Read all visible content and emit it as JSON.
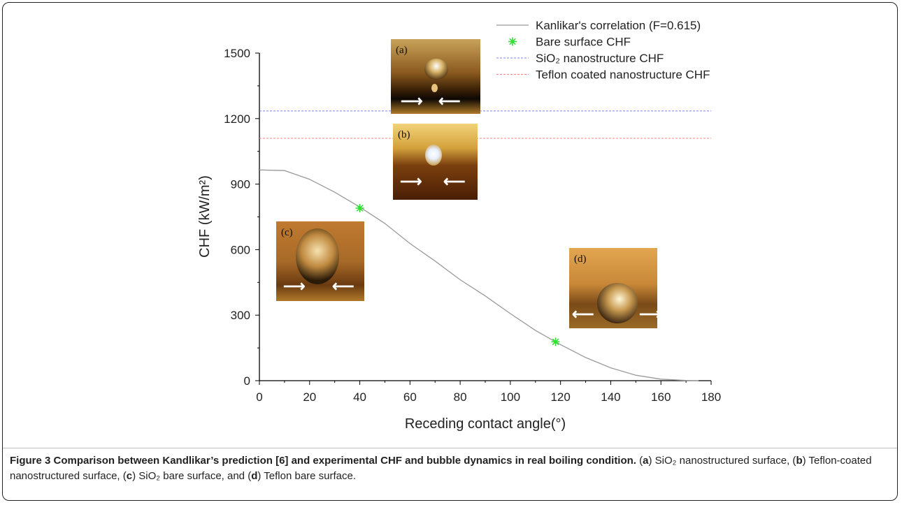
{
  "chart_data": {
    "type": "line",
    "xlabel": "Receding contact angle(°)",
    "ylabel": "CHF (kW/m²)",
    "xlim": [
      0,
      180
    ],
    "ylim": [
      0,
      1500
    ],
    "xticks": [
      0,
      20,
      40,
      60,
      80,
      100,
      120,
      140,
      160,
      180
    ],
    "yticks": [
      0,
      300,
      600,
      900,
      1200,
      1500
    ],
    "grid": false,
    "legend_position": "top-right",
    "series": [
      {
        "name": "Kanlikar's correlation (F=0.615)",
        "style": "solid-line",
        "color": "#9a9a9a",
        "x": [
          0,
          10,
          20,
          30,
          40,
          50,
          60,
          70,
          80,
          90,
          100,
          110,
          120,
          130,
          140,
          150,
          160,
          170,
          175
        ],
        "y": [
          965,
          962,
          922,
          863,
          795,
          720,
          628,
          548,
          462,
          388,
          307,
          230,
          165,
          106,
          59,
          25,
          7,
          1,
          0
        ]
      },
      {
        "name": "Bare surface CHF",
        "style": "marker",
        "color": "#33dd33",
        "x": [
          40,
          118
        ],
        "y": [
          790,
          178
        ]
      },
      {
        "name": "SiO₂ nanostructure CHF",
        "style": "dashed-hline",
        "color": "#8080ff",
        "y": 1235
      },
      {
        "name": "Teflon coated nanostructure CHF",
        "style": "dashed-hline",
        "color": "#ff8080",
        "y": 1110
      }
    ],
    "insets": [
      {
        "label": "(a)"
      },
      {
        "label": "(b)"
      },
      {
        "label": "(c)"
      },
      {
        "label": "(d)"
      }
    ]
  },
  "caption": {
    "title": "Figure 3 Comparison between Kandlikar’s prediction [6] and experimental CHF and bubble dynamics in real boiling condition.",
    "a_label": "a",
    "a_text": "SiO₂ nanostructured surface,",
    "b_label": "b",
    "b_text": "Teflon-coated nanostructured surface,",
    "c_label": "c",
    "c_text": "SiO₂ bare surface, and",
    "d_label": "d",
    "d_text": "Teflon bare surface."
  }
}
